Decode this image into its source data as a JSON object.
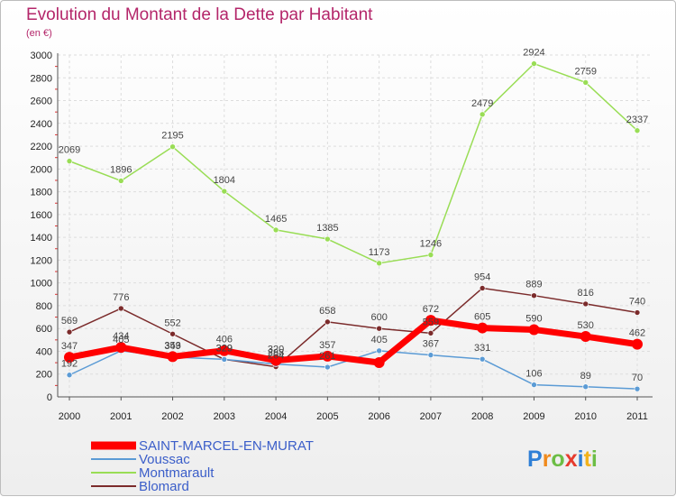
{
  "chart_data": {
    "type": "line",
    "title": "Evolution du Montant de la Dette par Habitant",
    "subtitle": "(en €)",
    "x": [
      "2000",
      "2001",
      "2002",
      "2003",
      "2004",
      "2005",
      "2006",
      "2007",
      "2008",
      "2009",
      "2010",
      "2011"
    ],
    "ylim": [
      0,
      3000
    ],
    "yticks": [
      0,
      200,
      400,
      600,
      800,
      1000,
      1200,
      1400,
      1600,
      1800,
      2000,
      2200,
      2400,
      2600,
      2800,
      3000
    ],
    "grid": true,
    "legend_position": "bottom-left",
    "series": [
      {
        "name": "SAINT-MARCEL-EN-MURAT",
        "color": "#ff0000",
        "values": [
          347,
          434,
          353,
          406,
          320,
          357,
          301,
          672,
          605,
          590,
          530,
          462
        ],
        "labels": [
          "347",
          "434",
          "353",
          "406",
          "320",
          "357",
          "",
          "672",
          "605",
          "590",
          "530",
          "462"
        ]
      },
      {
        "name": "Voussac",
        "color": "#5b9bd5",
        "values": [
          192,
          405,
          349,
          329,
          288,
          261,
          405,
          367,
          331,
          106,
          89,
          70
        ],
        "labels": [
          "192",
          "405",
          "349",
          "329",
          "288",
          "261",
          "405",
          "367",
          "331",
          "106",
          "89",
          "70"
        ]
      },
      {
        "name": "Montmarault",
        "color": "#99dd55",
        "values": [
          2069,
          1896,
          2195,
          1804,
          1465,
          1385,
          1173,
          1246,
          2479,
          2924,
          2759,
          2337
        ],
        "labels": [
          "2069",
          "1896",
          "2195",
          "1804",
          "1465",
          "1385",
          "1173",
          "1246",
          "2479",
          "2924",
          "2759",
          "2337"
        ]
      },
      {
        "name": "Blomard",
        "color": "#7b2b2b",
        "values": [
          569,
          776,
          552,
          329,
          264,
          658,
          600,
          559,
          954,
          889,
          816,
          740
        ],
        "labels": [
          "569",
          "776",
          "552",
          "329",
          "264",
          "658",
          "600",
          "559",
          "954",
          "889",
          "816",
          "740"
        ]
      }
    ]
  },
  "logo": {
    "text": "Proxiti"
  }
}
